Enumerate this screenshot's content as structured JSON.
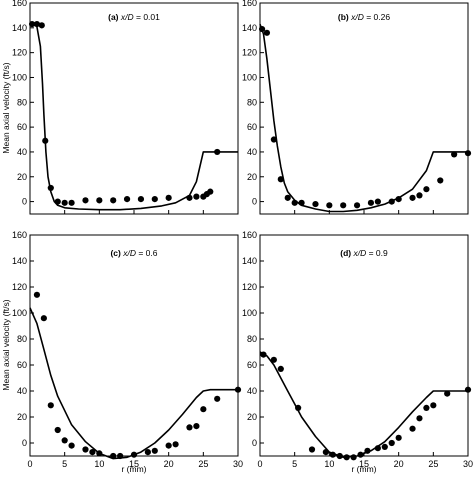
{
  "chart_data": [
    {
      "type": "scatter",
      "panel": "a",
      "title_label": "(a)",
      "title_var": "x/D",
      "title_value": "= 0.01",
      "ylabel": "Mean axial velocity (ft/s)",
      "xlabel": "",
      "xlim": [
        0,
        30
      ],
      "ylim": [
        -10,
        160
      ],
      "xticks": [
        0,
        5,
        10,
        15,
        20,
        25,
        30
      ],
      "yticks": [
        0,
        20,
        40,
        60,
        80,
        100,
        120,
        140,
        160
      ],
      "series": [
        {
          "style": "markers",
          "x": [
            0.3,
            1.0,
            1.7,
            2.2,
            3.0,
            4.0,
            5.0,
            6.0,
            8.0,
            10.0,
            12.0,
            14.0,
            16.0,
            18.0,
            20.0,
            23.0,
            24.0,
            25.0,
            25.5,
            26.0,
            27.0
          ],
          "y": [
            143,
            143,
            142,
            49,
            11,
            0,
            -1,
            -1,
            1,
            1,
            1,
            2,
            2,
            2,
            3,
            3,
            4,
            4,
            6,
            8,
            40
          ]
        },
        {
          "style": "line",
          "x": [
            0,
            0.5,
            1.0,
            1.5,
            1.8,
            2.0,
            2.3,
            2.6,
            3.0,
            3.5,
            4.0,
            5.0,
            7.0,
            10.0,
            13.0,
            16.0,
            19.0,
            21.0,
            23.0,
            24.0,
            25.0,
            26.0,
            30.0
          ],
          "y": [
            143,
            143,
            141,
            125,
            95,
            70,
            40,
            20,
            8,
            0,
            -3,
            -5,
            -6,
            -6.5,
            -6.5,
            -5.5,
            -3.5,
            -1,
            5,
            16,
            40,
            40,
            40
          ]
        }
      ]
    },
    {
      "type": "scatter",
      "panel": "b",
      "title_label": "(b)",
      "title_var": "x/D",
      "title_value": "= 0.26",
      "ylabel": "",
      "xlabel": "",
      "xlim": [
        0,
        30
      ],
      "ylim": [
        -10,
        160
      ],
      "xticks": [
        0,
        5,
        10,
        15,
        20,
        25,
        30
      ],
      "yticks": [
        0,
        20,
        40,
        60,
        80,
        100,
        120,
        140,
        160
      ],
      "series": [
        {
          "style": "markers",
          "x": [
            0.3,
            1.0,
            2.0,
            3.0,
            4.0,
            5.0,
            6.0,
            8.0,
            10.0,
            12.0,
            14.0,
            16.0,
            17.0,
            19.0,
            20.0,
            22.0,
            23.0,
            24.0,
            26.0,
            28.0,
            30.0
          ],
          "y": [
            139,
            136,
            50,
            18,
            3,
            -1,
            -1,
            -2,
            -3,
            -3,
            -3,
            -1,
            0,
            0,
            2,
            3,
            5,
            10,
            17,
            38,
            39
          ]
        },
        {
          "style": "line",
          "x": [
            0,
            0.5,
            1.0,
            1.5,
            2.0,
            2.5,
            3.0,
            3.5,
            4.0,
            5.0,
            6.0,
            8.0,
            10.0,
            12.0,
            14.0,
            16.0,
            18.0,
            20.0,
            22.0,
            24.0,
            25.0,
            26.0,
            30.0
          ],
          "y": [
            143,
            135,
            115,
            90,
            65,
            45,
            28,
            15,
            8,
            1,
            -3,
            -6,
            -8,
            -8,
            -7,
            -5,
            -2,
            3,
            10,
            25,
            40,
            40,
            40
          ]
        }
      ]
    },
    {
      "type": "scatter",
      "panel": "c",
      "title_label": "(c)",
      "title_var": "x/D",
      "title_value": "= 0.6",
      "ylabel": "Mean axial velocity (ft/s)",
      "xlabel": "r (mm)",
      "xlim": [
        0,
        30
      ],
      "ylim": [
        -10,
        160
      ],
      "xticks": [
        0,
        5,
        10,
        15,
        20,
        25,
        30
      ],
      "yticks": [
        0,
        20,
        40,
        60,
        80,
        100,
        120,
        140,
        160
      ],
      "series": [
        {
          "style": "markers",
          "x": [
            1.0,
            2.0,
            3.0,
            4.0,
            5.0,
            6.0,
            8.0,
            9.0,
            10.0,
            12.0,
            13.0,
            15.0,
            17.0,
            18.0,
            20.0,
            21.0,
            23.0,
            24.0,
            25.0,
            27.0,
            30.0
          ],
          "y": [
            114,
            96,
            29,
            10,
            2,
            -2,
            -5,
            -7,
            -8,
            -10,
            -10,
            -9,
            -7,
            -6,
            -2,
            -1,
            12,
            13,
            26,
            34,
            41
          ]
        },
        {
          "style": "line",
          "x": [
            0,
            1.0,
            2.0,
            3.0,
            4.0,
            6.0,
            8.0,
            10.0,
            12.0,
            14.0,
            16.0,
            18.0,
            20.0,
            22.0,
            24.0,
            25.0,
            26.0,
            30.0
          ],
          "y": [
            104,
            92,
            72,
            52,
            36,
            14,
            1,
            -8,
            -12,
            -11,
            -7,
            0,
            10,
            22,
            35,
            40,
            41,
            41
          ]
        }
      ]
    },
    {
      "type": "scatter",
      "panel": "d",
      "title_label": "(d)",
      "title_var": "x/D",
      "title_value": "= 0.9",
      "ylabel": "",
      "xlabel": "r (mm)",
      "xlim": [
        0,
        30
      ],
      "ylim": [
        -10,
        160
      ],
      "xticks": [
        0,
        5,
        10,
        15,
        20,
        25,
        30
      ],
      "yticks": [
        0,
        20,
        40,
        60,
        80,
        100,
        120,
        140,
        160
      ],
      "series": [
        {
          "style": "markers",
          "x": [
            0.5,
            2.0,
            3.0,
            5.5,
            7.5,
            9.5,
            10.5,
            11.5,
            12.5,
            13.5,
            14.5,
            15.5,
            17.0,
            18.0,
            19.0,
            20.0,
            22.0,
            23.0,
            24.0,
            25.0,
            27.0,
            30.0
          ],
          "y": [
            68,
            64,
            57,
            27,
            -5,
            -7,
            -9,
            -10,
            -11,
            -11,
            -9,
            -6,
            -4,
            -3,
            0,
            4,
            11,
            19,
            27,
            29,
            38,
            41
          ]
        },
        {
          "style": "line",
          "x": [
            0,
            1.0,
            2.0,
            3.0,
            4.0,
            5.0,
            6.0,
            8.0,
            10.0,
            12.0,
            14.0,
            16.0,
            18.0,
            20.0,
            22.0,
            24.0,
            25.0,
            26.0,
            30.0
          ],
          "y": [
            70,
            67,
            60,
            50,
            40,
            30,
            20,
            5,
            -7,
            -11,
            -10,
            -6,
            1,
            12,
            24,
            35,
            40,
            40,
            40
          ]
        }
      ]
    }
  ]
}
